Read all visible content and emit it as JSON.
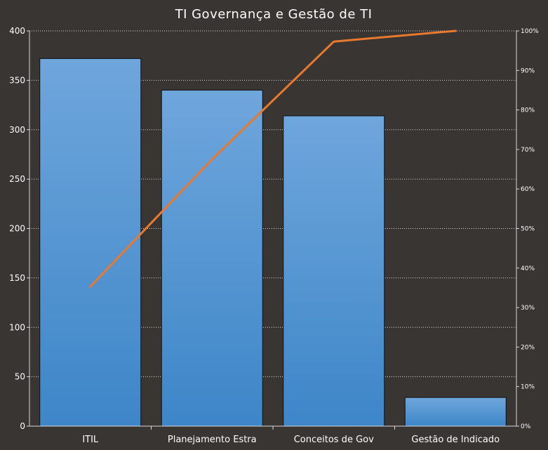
{
  "chart_data": {
    "type": "bar",
    "title": "TI Governança e Gestão de TI",
    "categories": [
      "ITIL",
      "Planejamento Estra",
      "Conceitos de Gov",
      "Gestão de Indicado"
    ],
    "series": [
      {
        "values": [
          372,
          340,
          314,
          29
        ]
      }
    ],
    "line_series": {
      "values": [
        35.3,
        67.5,
        97.3,
        100
      ]
    },
    "ylim": [
      0,
      400
    ],
    "y_ticks": [
      "0",
      "50",
      "100",
      "150",
      "200",
      "250",
      "300",
      "350",
      "400"
    ],
    "y2lim": [
      0,
      100
    ],
    "y2_ticks": [
      "0%",
      "10%",
      "20%",
      "30%",
      "40%",
      "50%",
      "60%",
      "70%",
      "80%",
      "90%",
      "100%"
    ],
    "grid": true,
    "legend": "none",
    "colors": {
      "background": "#383533",
      "bar_top": "#6fa6dc",
      "bar_bottom": "#3d86c8",
      "bar_edge": "#111111",
      "line": "#e8792e",
      "grid": "#d8d8d8",
      "text": "#ffffff"
    }
  }
}
